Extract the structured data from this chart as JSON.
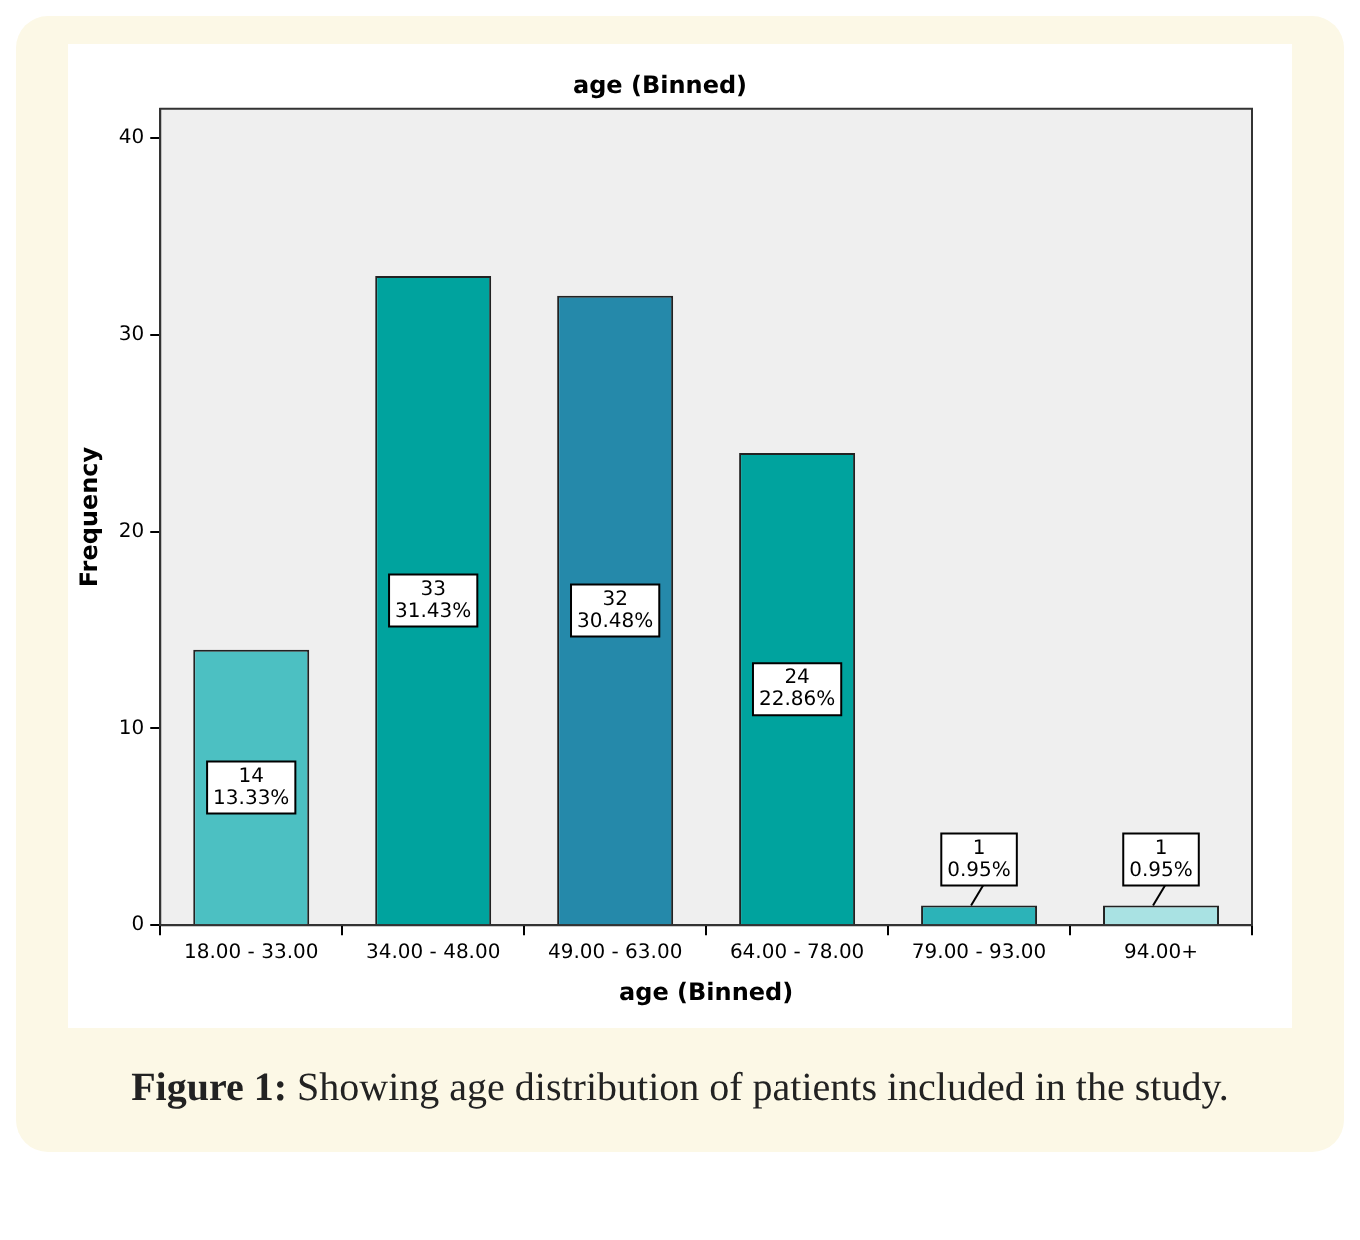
{
  "chart_data": {
    "type": "bar",
    "title": "age (Binned)",
    "xlabel": "age (Binned)",
    "ylabel": "Frequency",
    "categories": [
      "18.00 - 33.00",
      "34.00 - 48.00",
      "49.00 - 63.00",
      "64.00 - 78.00",
      "79.00 - 93.00",
      "94.00+"
    ],
    "values": [
      14,
      33,
      32,
      24,
      1,
      1
    ],
    "colors": [
      "#4cc0c2",
      "#00a39e",
      "#2589aa",
      "#00a39e",
      "#2cb3b8",
      "#a9e2e3"
    ],
    "value_labels": [
      "14\n13.33%",
      "33\n31.43%",
      "32\n30.48%",
      "24\n22.86%",
      "1\n0.95%",
      "1\n0.95%"
    ],
    "ylim": [
      0,
      41.5
    ],
    "yticks": [
      0,
      10,
      20,
      30,
      40
    ],
    "grid": false,
    "legend": false,
    "annotations": [
      "Figure 1: Showing age distribution of patients included in the study."
    ]
  }
}
